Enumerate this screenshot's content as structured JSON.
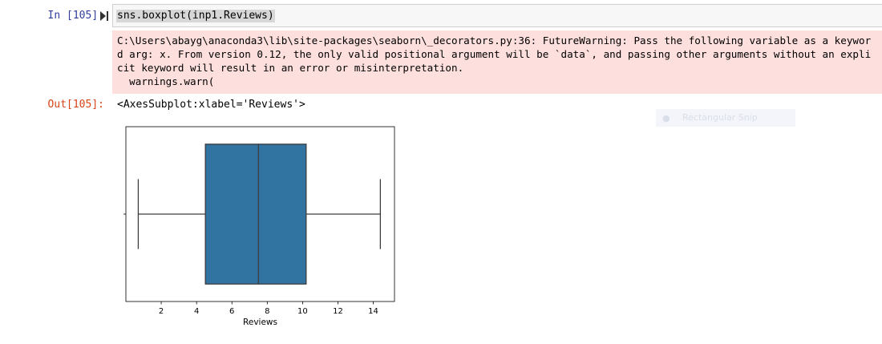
{
  "input_prompt": "In [105]:",
  "code": "sns.boxplot(inp1.Reviews)",
  "stderr_lines": [
    "C:\\Users\\abayg\\anaconda3\\lib\\site-packages\\seaborn\\_decorators.py:36: FutureWarning: Pass the following variable as a keywor",
    "d arg: x. From version 0.12, the only valid positional argument will be `data`, and passing other arguments without an expli",
    "cit keyword will result in an error or misinterpretation.",
    "  warnings.warn("
  ],
  "output_prompt": "Out[105]:",
  "output_text": "<AxesSubplot:xlabel='Reviews'>",
  "overlay_label": "Rectangular Snip",
  "colors": {
    "box_fill": "#3274a1",
    "input_prompt": "#303f9f",
    "output_prompt": "#d84315",
    "stderr_bg": "#fddfdd"
  },
  "chart_data": {
    "type": "box",
    "xlabel": "Reviews",
    "xlim": [
      0,
      15.2
    ],
    "xticks": [
      2,
      4,
      6,
      8,
      10,
      12,
      14
    ],
    "whisker_low": 0.7,
    "q1": 4.5,
    "median": 7.5,
    "q3": 10.2,
    "whisker_high": 14.4,
    "grid": false
  }
}
